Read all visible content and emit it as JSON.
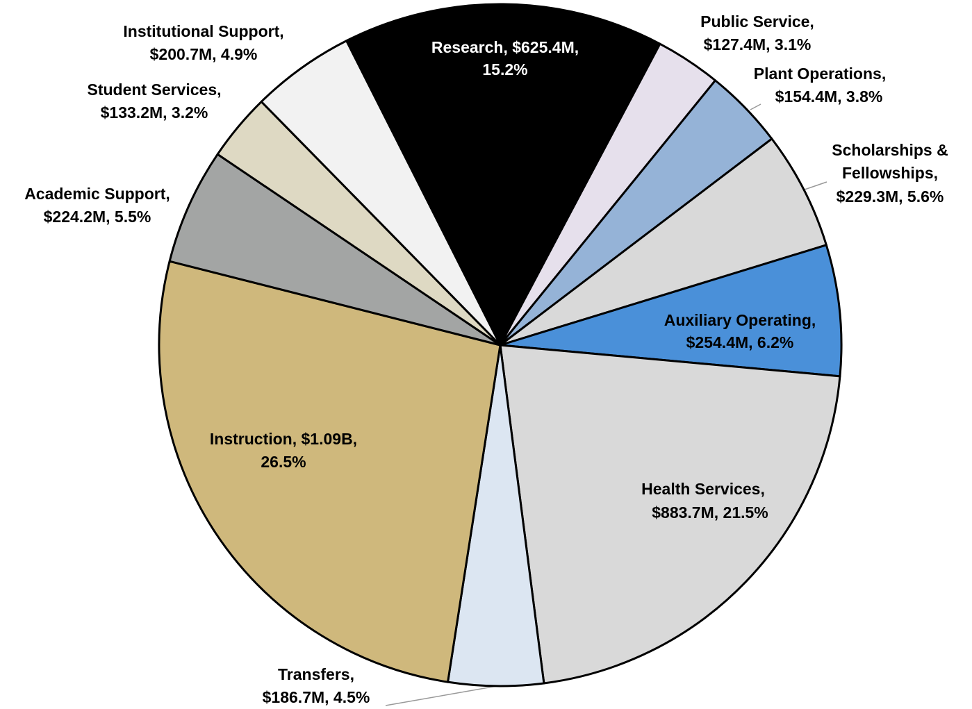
{
  "chart_data": {
    "type": "pie",
    "values": [
      15.2,
      3.1,
      3.8,
      5.6,
      6.2,
      21.5,
      4.5,
      26.5,
      5.5,
      3.2,
      4.9
    ],
    "value_labels": [
      [
        "Research, $625.4M,",
        "15.2%"
      ],
      [
        "Public Service,",
        "$127.4M, 3.1%"
      ],
      [
        "Plant Operations,",
        "$154.4M, 3.8%"
      ],
      [
        "Scholarships &",
        "Fellowships,",
        "$229.3M, 5.6%"
      ],
      [
        "Auxiliary Operating,",
        "$254.4M, 6.2%"
      ],
      [
        "Health Services,",
        "$883.7M, 21.5%"
      ],
      [
        "Transfers,",
        "$186.7M, 4.5%"
      ],
      [
        "Instruction, $1.09B,",
        "26.5%"
      ],
      [
        "Academic Support,",
        "$224.2M, 5.5%"
      ],
      [
        "Student Services,",
        "$133.2M, 3.2%"
      ],
      [
        "Institutional Support,",
        "$200.7M, 4.9%"
      ]
    ],
    "colors": [
      "#000000",
      "#e6e0ec",
      "#95b3d7",
      "#d9d9d9",
      "#4a90d9",
      "#d9d9d9",
      "#dce6f2",
      "#cfb87c",
      "#a3a5a4",
      "#ded9c3",
      "#f2f2f2"
    ]
  }
}
